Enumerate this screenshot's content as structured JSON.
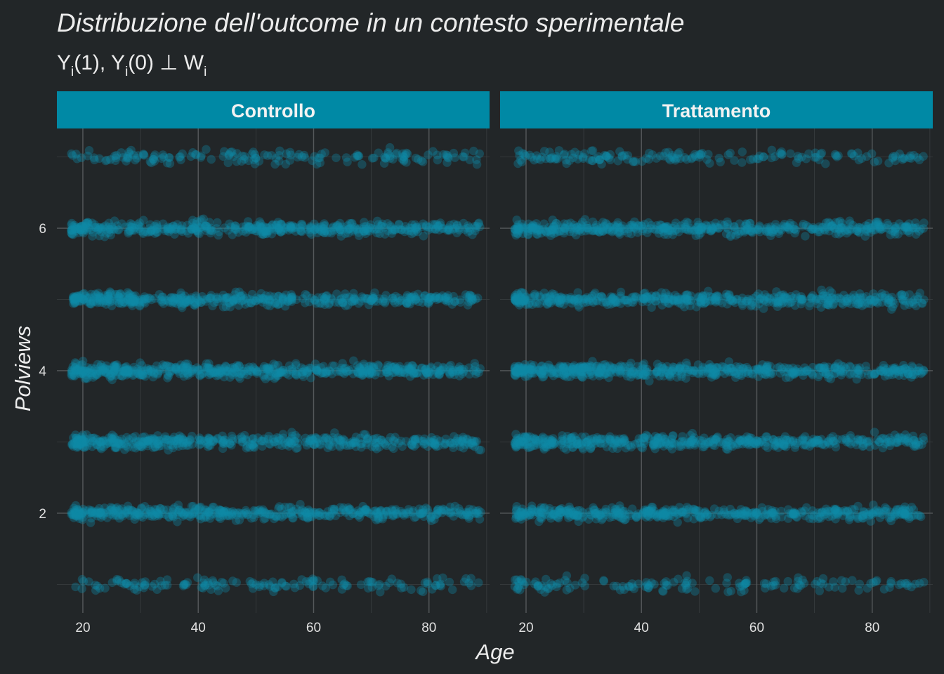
{
  "chart_data": {
    "type": "scatter",
    "title": "Distribuzione dell'outcome in un contesto sperimentale",
    "subtitle": {
      "parts": [
        "Y",
        "i",
        "(1), Y",
        "i",
        "(0) ⊥ W",
        "i"
      ]
    },
    "xlabel": "Age",
    "ylabel": "Polviews",
    "xlim": [
      15.5,
      90.5
    ],
    "ylim": [
      0.6,
      7.4
    ],
    "x_ticks": [
      20,
      40,
      60,
      80
    ],
    "y_ticks": [
      2,
      4,
      6
    ],
    "grid": true,
    "jitter": true,
    "point_color": "#0e8aa6",
    "strip_color": "#0089a5",
    "background_color": "#222628",
    "panels": [
      {
        "label": "Controllo",
        "age_range": [
          18,
          89
        ],
        "levels": [
          {
            "y": 1,
            "density": 0.28
          },
          {
            "y": 2,
            "density": 0.85
          },
          {
            "y": 3,
            "density": 0.85
          },
          {
            "y": 4,
            "density": 1.0
          },
          {
            "y": 5,
            "density": 0.85
          },
          {
            "y": 6,
            "density": 0.85
          },
          {
            "y": 7,
            "density": 0.32
          }
        ]
      },
      {
        "label": "Trattamento",
        "age_range": [
          18,
          89
        ],
        "levels": [
          {
            "y": 1,
            "density": 0.28
          },
          {
            "y": 2,
            "density": 0.85
          },
          {
            "y": 3,
            "density": 0.85
          },
          {
            "y": 4,
            "density": 1.0
          },
          {
            "y": 5,
            "density": 0.85
          },
          {
            "y": 6,
            "density": 0.85
          },
          {
            "y": 7,
            "density": 0.32
          }
        ]
      }
    ]
  }
}
